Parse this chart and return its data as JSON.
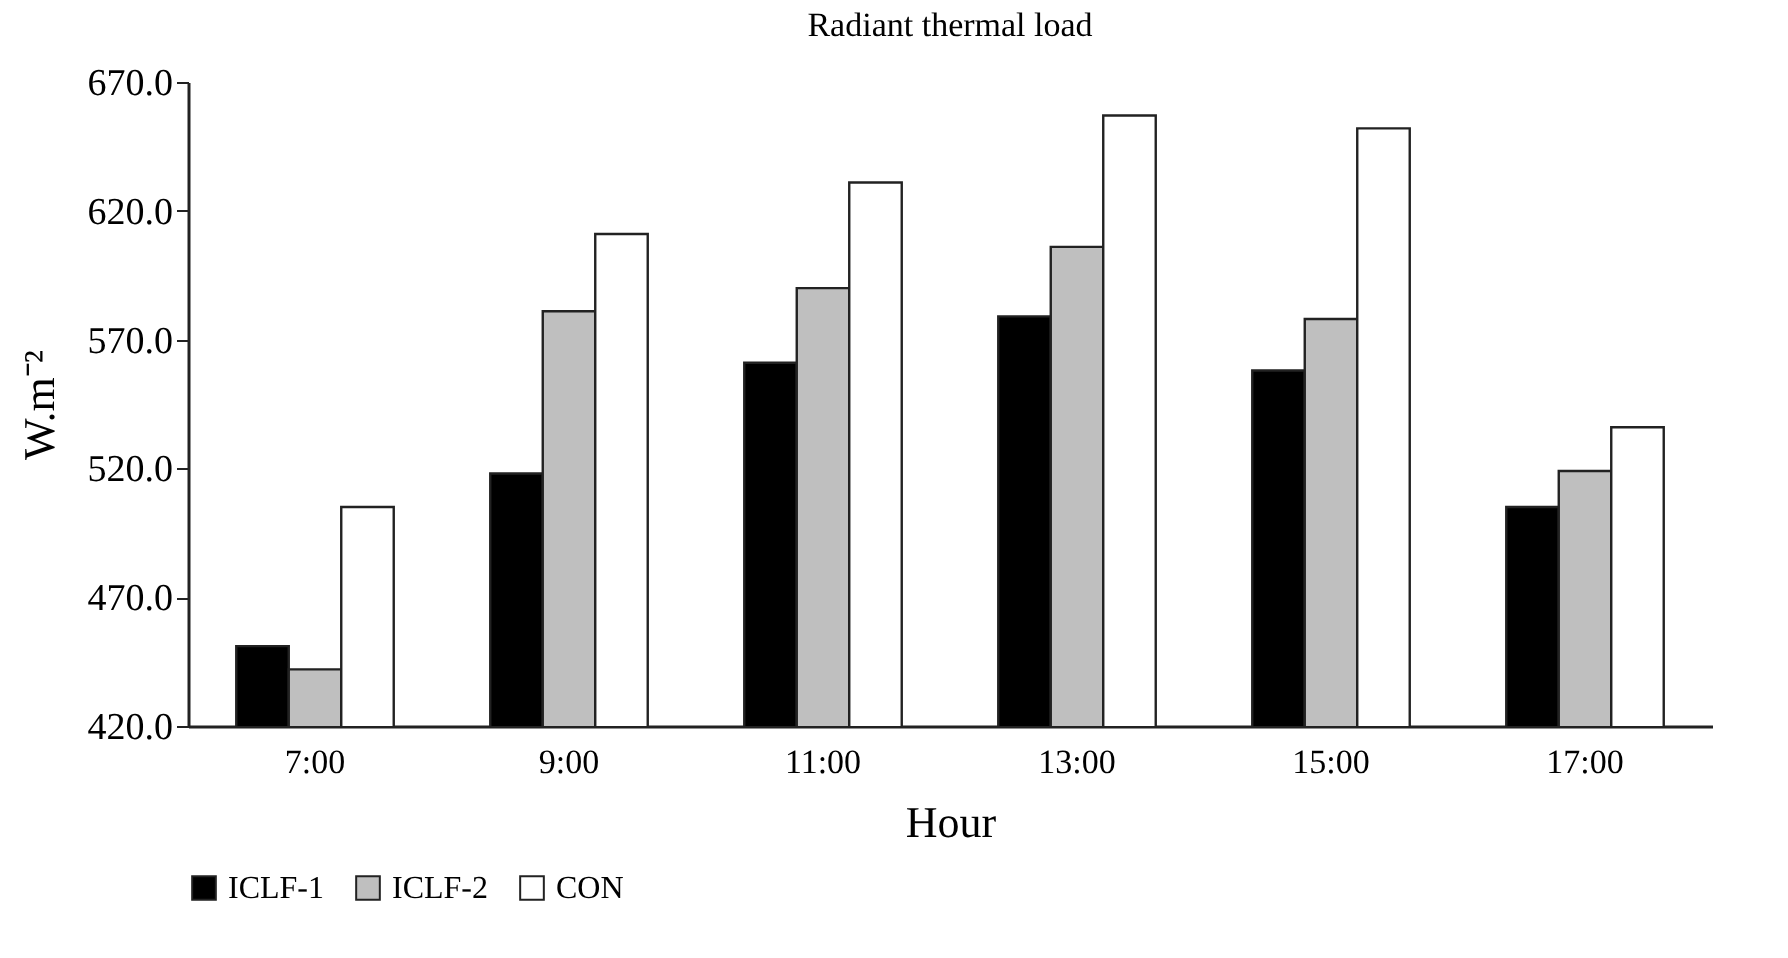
{
  "chart_data": {
    "type": "bar",
    "title": "Radiant thermal load",
    "xlabel": "Hour",
    "ylabel": "W.m⁻²",
    "categories": [
      "7:00",
      "9:00",
      "11:00",
      "13:00",
      "15:00",
      "17:00"
    ],
    "series": [
      {
        "name": "ICLF-1",
        "color": "#000000",
        "values": [
          451,
          518,
          561,
          579,
          558,
          505
        ]
      },
      {
        "name": "ICLF-2",
        "color": "#bfbfbf",
        "values": [
          442,
          581,
          590,
          606,
          578,
          519
        ]
      },
      {
        "name": "CON",
        "color": "#ffffff",
        "values": [
          505,
          611,
          631,
          657,
          652,
          536
        ]
      }
    ],
    "ylim": [
      420,
      670
    ],
    "yticks": [
      {
        "value": 420,
        "label": "420.0"
      },
      {
        "value": 470,
        "label": "470.0"
      },
      {
        "value": 520,
        "label": "520.0"
      },
      {
        "value": 570,
        "label": "570.0"
      },
      {
        "value": 620,
        "label": "620.0"
      },
      {
        "value": 670,
        "label": "670.0"
      }
    ],
    "grid": false,
    "legend": "bottom"
  }
}
